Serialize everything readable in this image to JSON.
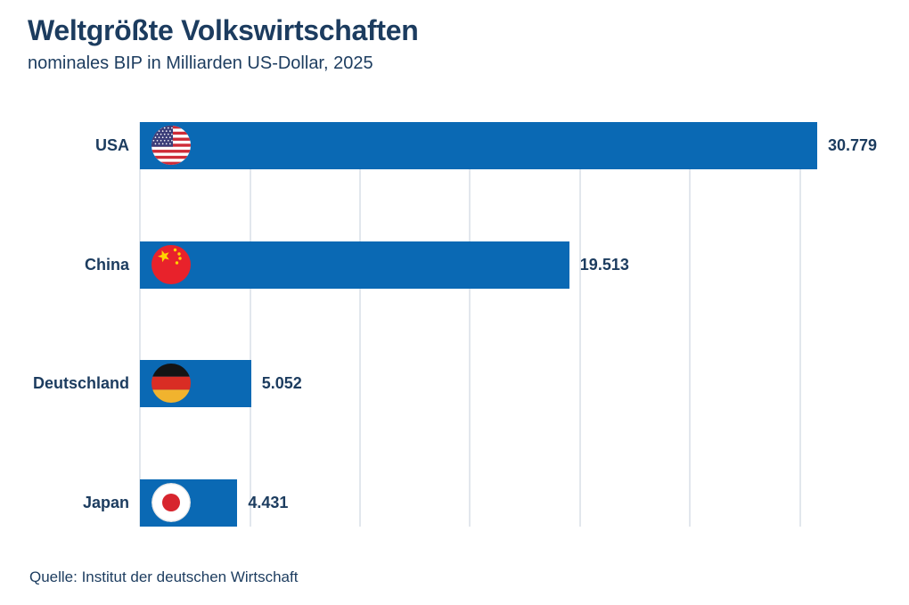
{
  "header": {
    "title": "Weltgrößte Volkswirtschaften",
    "subtitle": "nominales BIP in Milliarden US-Dollar, 2025"
  },
  "footer": {
    "source": "Quelle: Institut der deutschen Wirtschaft"
  },
  "chart_data": {
    "type": "bar",
    "orientation": "horizontal",
    "title": "Weltgrößte Volkswirtschaften",
    "subtitle": "nominales BIP in Milliarden US-Dollar, 2025",
    "categories": [
      "USA",
      "China",
      "Deutschland",
      "Japan"
    ],
    "values": [
      30779,
      19513,
      5052,
      4431
    ],
    "value_labels": [
      "30.779",
      "19.513",
      "5.052",
      "4.431"
    ],
    "flag_icons": [
      "usa-flag-icon",
      "china-flag-icon",
      "germany-flag-icon",
      "japan-flag-icon"
    ],
    "xlim": [
      0,
      32400
    ],
    "gridline_interval": 5000,
    "grid": "vertical-only",
    "legend": "none",
    "colors": {
      "bar": "#0A69B4",
      "text": "#1C3C5F",
      "gridline": "#E2E7ED",
      "background": "#FFFFFF"
    }
  }
}
